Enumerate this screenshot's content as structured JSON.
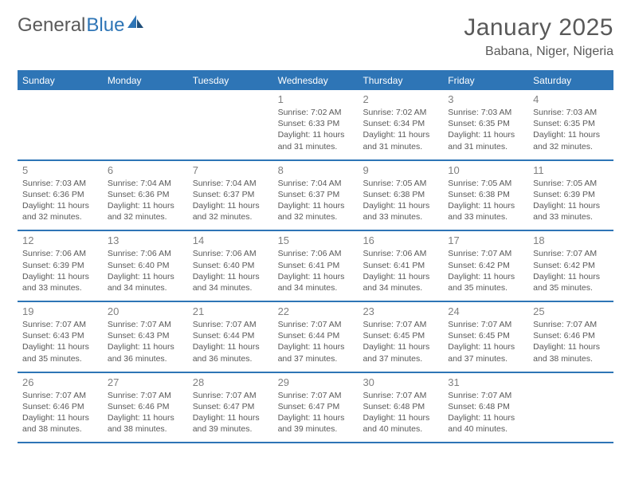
{
  "brand": {
    "general": "General",
    "blue": "Blue"
  },
  "title": "January 2025",
  "location": "Babana, Niger, Nigeria",
  "colors": {
    "header_bg": "#2e75b6",
    "header_text": "#ffffff",
    "body_text": "#595959",
    "daynum_text": "#808080",
    "rule": "#2e75b6",
    "page_bg": "#ffffff"
  },
  "dayNames": [
    "Sunday",
    "Monday",
    "Tuesday",
    "Wednesday",
    "Thursday",
    "Friday",
    "Saturday"
  ],
  "weeks": [
    [
      {},
      {},
      {},
      {
        "d": "1",
        "sr": "Sunrise: 7:02 AM",
        "ss": "Sunset: 6:33 PM",
        "dl1": "Daylight: 11 hours",
        "dl2": "and 31 minutes."
      },
      {
        "d": "2",
        "sr": "Sunrise: 7:02 AM",
        "ss": "Sunset: 6:34 PM",
        "dl1": "Daylight: 11 hours",
        "dl2": "and 31 minutes."
      },
      {
        "d": "3",
        "sr": "Sunrise: 7:03 AM",
        "ss": "Sunset: 6:35 PM",
        "dl1": "Daylight: 11 hours",
        "dl2": "and 31 minutes."
      },
      {
        "d": "4",
        "sr": "Sunrise: 7:03 AM",
        "ss": "Sunset: 6:35 PM",
        "dl1": "Daylight: 11 hours",
        "dl2": "and 32 minutes."
      }
    ],
    [
      {
        "d": "5",
        "sr": "Sunrise: 7:03 AM",
        "ss": "Sunset: 6:36 PM",
        "dl1": "Daylight: 11 hours",
        "dl2": "and 32 minutes."
      },
      {
        "d": "6",
        "sr": "Sunrise: 7:04 AM",
        "ss": "Sunset: 6:36 PM",
        "dl1": "Daylight: 11 hours",
        "dl2": "and 32 minutes."
      },
      {
        "d": "7",
        "sr": "Sunrise: 7:04 AM",
        "ss": "Sunset: 6:37 PM",
        "dl1": "Daylight: 11 hours",
        "dl2": "and 32 minutes."
      },
      {
        "d": "8",
        "sr": "Sunrise: 7:04 AM",
        "ss": "Sunset: 6:37 PM",
        "dl1": "Daylight: 11 hours",
        "dl2": "and 32 minutes."
      },
      {
        "d": "9",
        "sr": "Sunrise: 7:05 AM",
        "ss": "Sunset: 6:38 PM",
        "dl1": "Daylight: 11 hours",
        "dl2": "and 33 minutes."
      },
      {
        "d": "10",
        "sr": "Sunrise: 7:05 AM",
        "ss": "Sunset: 6:38 PM",
        "dl1": "Daylight: 11 hours",
        "dl2": "and 33 minutes."
      },
      {
        "d": "11",
        "sr": "Sunrise: 7:05 AM",
        "ss": "Sunset: 6:39 PM",
        "dl1": "Daylight: 11 hours",
        "dl2": "and 33 minutes."
      }
    ],
    [
      {
        "d": "12",
        "sr": "Sunrise: 7:06 AM",
        "ss": "Sunset: 6:39 PM",
        "dl1": "Daylight: 11 hours",
        "dl2": "and 33 minutes."
      },
      {
        "d": "13",
        "sr": "Sunrise: 7:06 AM",
        "ss": "Sunset: 6:40 PM",
        "dl1": "Daylight: 11 hours",
        "dl2": "and 34 minutes."
      },
      {
        "d": "14",
        "sr": "Sunrise: 7:06 AM",
        "ss": "Sunset: 6:40 PM",
        "dl1": "Daylight: 11 hours",
        "dl2": "and 34 minutes."
      },
      {
        "d": "15",
        "sr": "Sunrise: 7:06 AM",
        "ss": "Sunset: 6:41 PM",
        "dl1": "Daylight: 11 hours",
        "dl2": "and 34 minutes."
      },
      {
        "d": "16",
        "sr": "Sunrise: 7:06 AM",
        "ss": "Sunset: 6:41 PM",
        "dl1": "Daylight: 11 hours",
        "dl2": "and 34 minutes."
      },
      {
        "d": "17",
        "sr": "Sunrise: 7:07 AM",
        "ss": "Sunset: 6:42 PM",
        "dl1": "Daylight: 11 hours",
        "dl2": "and 35 minutes."
      },
      {
        "d": "18",
        "sr": "Sunrise: 7:07 AM",
        "ss": "Sunset: 6:42 PM",
        "dl1": "Daylight: 11 hours",
        "dl2": "and 35 minutes."
      }
    ],
    [
      {
        "d": "19",
        "sr": "Sunrise: 7:07 AM",
        "ss": "Sunset: 6:43 PM",
        "dl1": "Daylight: 11 hours",
        "dl2": "and 35 minutes."
      },
      {
        "d": "20",
        "sr": "Sunrise: 7:07 AM",
        "ss": "Sunset: 6:43 PM",
        "dl1": "Daylight: 11 hours",
        "dl2": "and 36 minutes."
      },
      {
        "d": "21",
        "sr": "Sunrise: 7:07 AM",
        "ss": "Sunset: 6:44 PM",
        "dl1": "Daylight: 11 hours",
        "dl2": "and 36 minutes."
      },
      {
        "d": "22",
        "sr": "Sunrise: 7:07 AM",
        "ss": "Sunset: 6:44 PM",
        "dl1": "Daylight: 11 hours",
        "dl2": "and 37 minutes."
      },
      {
        "d": "23",
        "sr": "Sunrise: 7:07 AM",
        "ss": "Sunset: 6:45 PM",
        "dl1": "Daylight: 11 hours",
        "dl2": "and 37 minutes."
      },
      {
        "d": "24",
        "sr": "Sunrise: 7:07 AM",
        "ss": "Sunset: 6:45 PM",
        "dl1": "Daylight: 11 hours",
        "dl2": "and 37 minutes."
      },
      {
        "d": "25",
        "sr": "Sunrise: 7:07 AM",
        "ss": "Sunset: 6:46 PM",
        "dl1": "Daylight: 11 hours",
        "dl2": "and 38 minutes."
      }
    ],
    [
      {
        "d": "26",
        "sr": "Sunrise: 7:07 AM",
        "ss": "Sunset: 6:46 PM",
        "dl1": "Daylight: 11 hours",
        "dl2": "and 38 minutes."
      },
      {
        "d": "27",
        "sr": "Sunrise: 7:07 AM",
        "ss": "Sunset: 6:46 PM",
        "dl1": "Daylight: 11 hours",
        "dl2": "and 38 minutes."
      },
      {
        "d": "28",
        "sr": "Sunrise: 7:07 AM",
        "ss": "Sunset: 6:47 PM",
        "dl1": "Daylight: 11 hours",
        "dl2": "and 39 minutes."
      },
      {
        "d": "29",
        "sr": "Sunrise: 7:07 AM",
        "ss": "Sunset: 6:47 PM",
        "dl1": "Daylight: 11 hours",
        "dl2": "and 39 minutes."
      },
      {
        "d": "30",
        "sr": "Sunrise: 7:07 AM",
        "ss": "Sunset: 6:48 PM",
        "dl1": "Daylight: 11 hours",
        "dl2": "and 40 minutes."
      },
      {
        "d": "31",
        "sr": "Sunrise: 7:07 AM",
        "ss": "Sunset: 6:48 PM",
        "dl1": "Daylight: 11 hours",
        "dl2": "and 40 minutes."
      },
      {}
    ]
  ]
}
